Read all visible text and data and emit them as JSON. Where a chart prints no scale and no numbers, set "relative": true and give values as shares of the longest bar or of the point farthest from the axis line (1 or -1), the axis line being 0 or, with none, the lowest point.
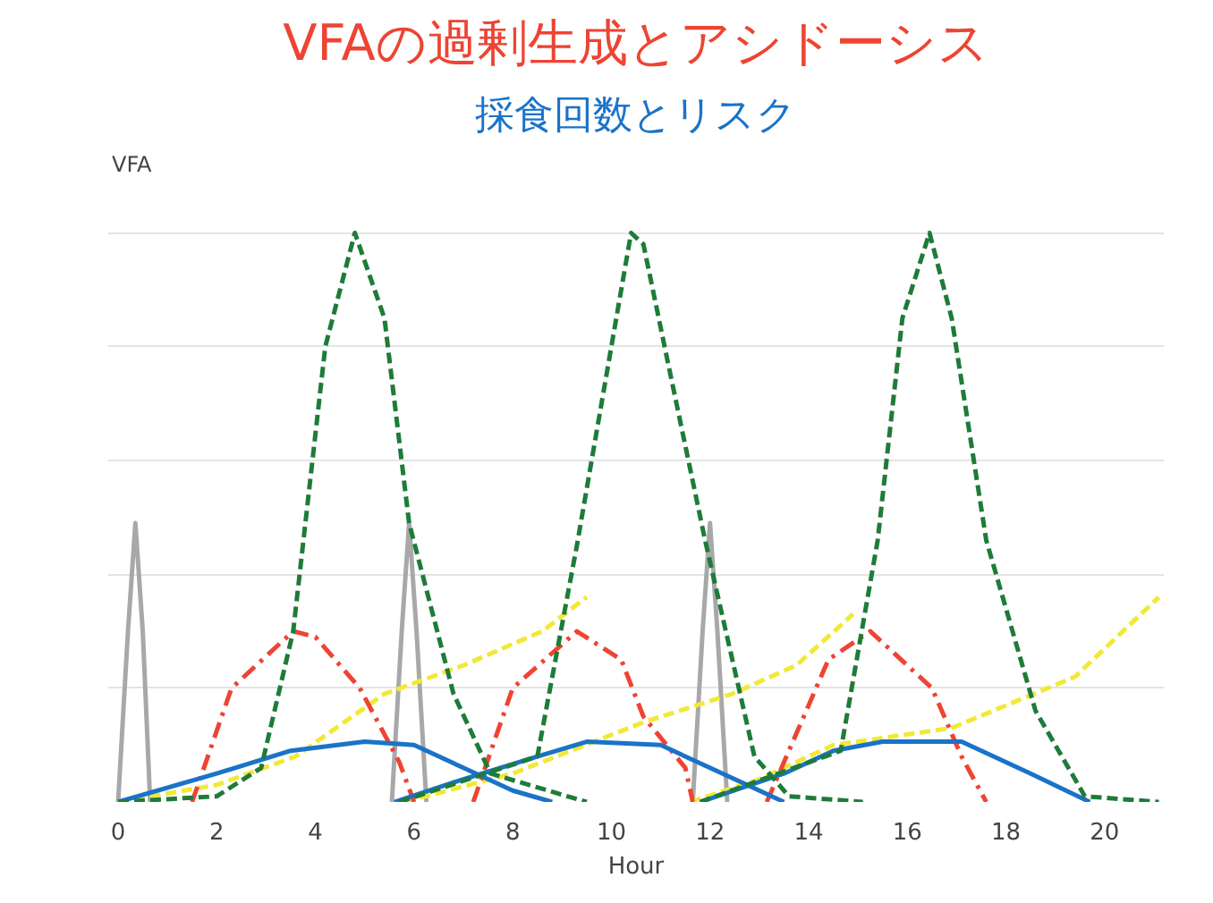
{
  "chart_data": {
    "type": "line",
    "title": "VFAの過剰生成とアシドーシス",
    "subtitle": "採食回数とリスク",
    "xlabel": "Hour",
    "ylabel": "VFA",
    "relative": true,
    "grid": "y",
    "marker": "none",
    "xlim": [
      -0.2,
      21.2
    ],
    "xticks": [
      0,
      2,
      4,
      6,
      8,
      10,
      12,
      14,
      16,
      18,
      20
    ],
    "series": [
      {
        "color": "#a8a8a8",
        "line_style": "solid",
        "x": [
          0,
          0.2,
          0.35,
          0.5,
          0.65
        ],
        "values": [
          0,
          0.3,
          0.49,
          0.3,
          0
        ]
      },
      {
        "color": "#a8a8a8",
        "line_style": "solid",
        "x": [
          5.55,
          5.75,
          5.9,
          6.05,
          6.25
        ],
        "values": [
          0,
          0.3,
          0.49,
          0.3,
          0
        ]
      },
      {
        "color": "#a8a8a8",
        "line_style": "solid",
        "x": [
          11.65,
          11.85,
          12.0,
          12.15,
          12.35
        ],
        "values": [
          0,
          0.3,
          0.49,
          0.3,
          0
        ]
      },
      {
        "color": "#f2e836",
        "line_style": "dashed",
        "x": [
          0,
          2,
          3.6,
          5.4,
          7,
          8.6,
          9.5
        ],
        "values": [
          0,
          0.03,
          0.08,
          0.19,
          0.24,
          0.3,
          0.36
        ]
      },
      {
        "color": "#f2e836",
        "line_style": "dashed",
        "x": [
          5.8,
          8,
          10.65,
          12.45,
          13.75,
          14.9
        ],
        "values": [
          0,
          0.05,
          0.14,
          0.19,
          0.24,
          0.33
        ]
      },
      {
        "color": "#f2e836",
        "line_style": "dashed",
        "x": [
          11.6,
          13,
          14.5,
          16.9,
          19.4,
          21.1
        ],
        "values": [
          0,
          0.04,
          0.1,
          0.13,
          0.22,
          0.36
        ]
      },
      {
        "color": "#ee4433",
        "line_style": "dashdot",
        "x": [
          1.5,
          2.3,
          3.55,
          4.0,
          4.9,
          5.7,
          6.0
        ],
        "values": [
          0,
          0.2,
          0.3,
          0.29,
          0.2,
          0.07,
          0
        ]
      },
      {
        "color": "#ee4433",
        "line_style": "dashdot",
        "x": [
          7.2,
          8.0,
          9.3,
          10.2,
          10.65,
          11.5,
          11.65
        ],
        "values": [
          0,
          0.2,
          0.3,
          0.25,
          0.15,
          0.06,
          0
        ]
      },
      {
        "color": "#ee4433",
        "line_style": "dashdot",
        "x": [
          13.15,
          13.75,
          14.4,
          15.25,
          16.5,
          17.1,
          17.6
        ],
        "values": [
          0,
          0.12,
          0.25,
          0.3,
          0.2,
          0.08,
          0
        ]
      },
      {
        "color": "#1a73c8",
        "line_style": "solid",
        "x": [
          0,
          2,
          3.5,
          5,
          6,
          7,
          8,
          8.8
        ],
        "values": [
          0,
          0.05,
          0.09,
          0.106,
          0.1,
          0.06,
          0.02,
          0
        ]
      },
      {
        "color": "#1a73c8",
        "line_style": "solid",
        "x": [
          5.6,
          7,
          8.5,
          9.5,
          11,
          12.5,
          13.5
        ],
        "values": [
          0,
          0.04,
          0.08,
          0.106,
          0.1,
          0.04,
          0
        ]
      },
      {
        "color": "#1a73c8",
        "line_style": "solid",
        "x": [
          11.8,
          13.5,
          14.5,
          15.5,
          17.1,
          18.5,
          19.7
        ],
        "values": [
          0,
          0.05,
          0.09,
          0.106,
          0.106,
          0.05,
          0
        ]
      },
      {
        "color": "#1e7b3a",
        "line_style": "dashed",
        "x": [
          0,
          2,
          2.9,
          3.55,
          4.2,
          4.8,
          5.4,
          5.9,
          6.8,
          7.55,
          9.5
        ],
        "values": [
          0,
          0.01,
          0.06,
          0.3,
          0.8,
          1.0,
          0.85,
          0.49,
          0.19,
          0.05,
          0
        ]
      },
      {
        "color": "#1e7b3a",
        "line_style": "dashed",
        "x": [
          5.7,
          8.5,
          9.3,
          10.4,
          10.65,
          11.2,
          11.9,
          12.9,
          13.6,
          15.1
        ],
        "values": [
          0,
          0.08,
          0.45,
          1.0,
          0.98,
          0.75,
          0.46,
          0.08,
          0.01,
          0
        ]
      },
      {
        "color": "#1e7b3a",
        "line_style": "dashed",
        "x": [
          11.8,
          14.65,
          15.4,
          15.9,
          16.45,
          16.9,
          17.6,
          18.6,
          19.6,
          21.1
        ],
        "values": [
          0,
          0.09,
          0.46,
          0.85,
          1.0,
          0.85,
          0.46,
          0.16,
          0.01,
          0
        ]
      }
    ]
  }
}
